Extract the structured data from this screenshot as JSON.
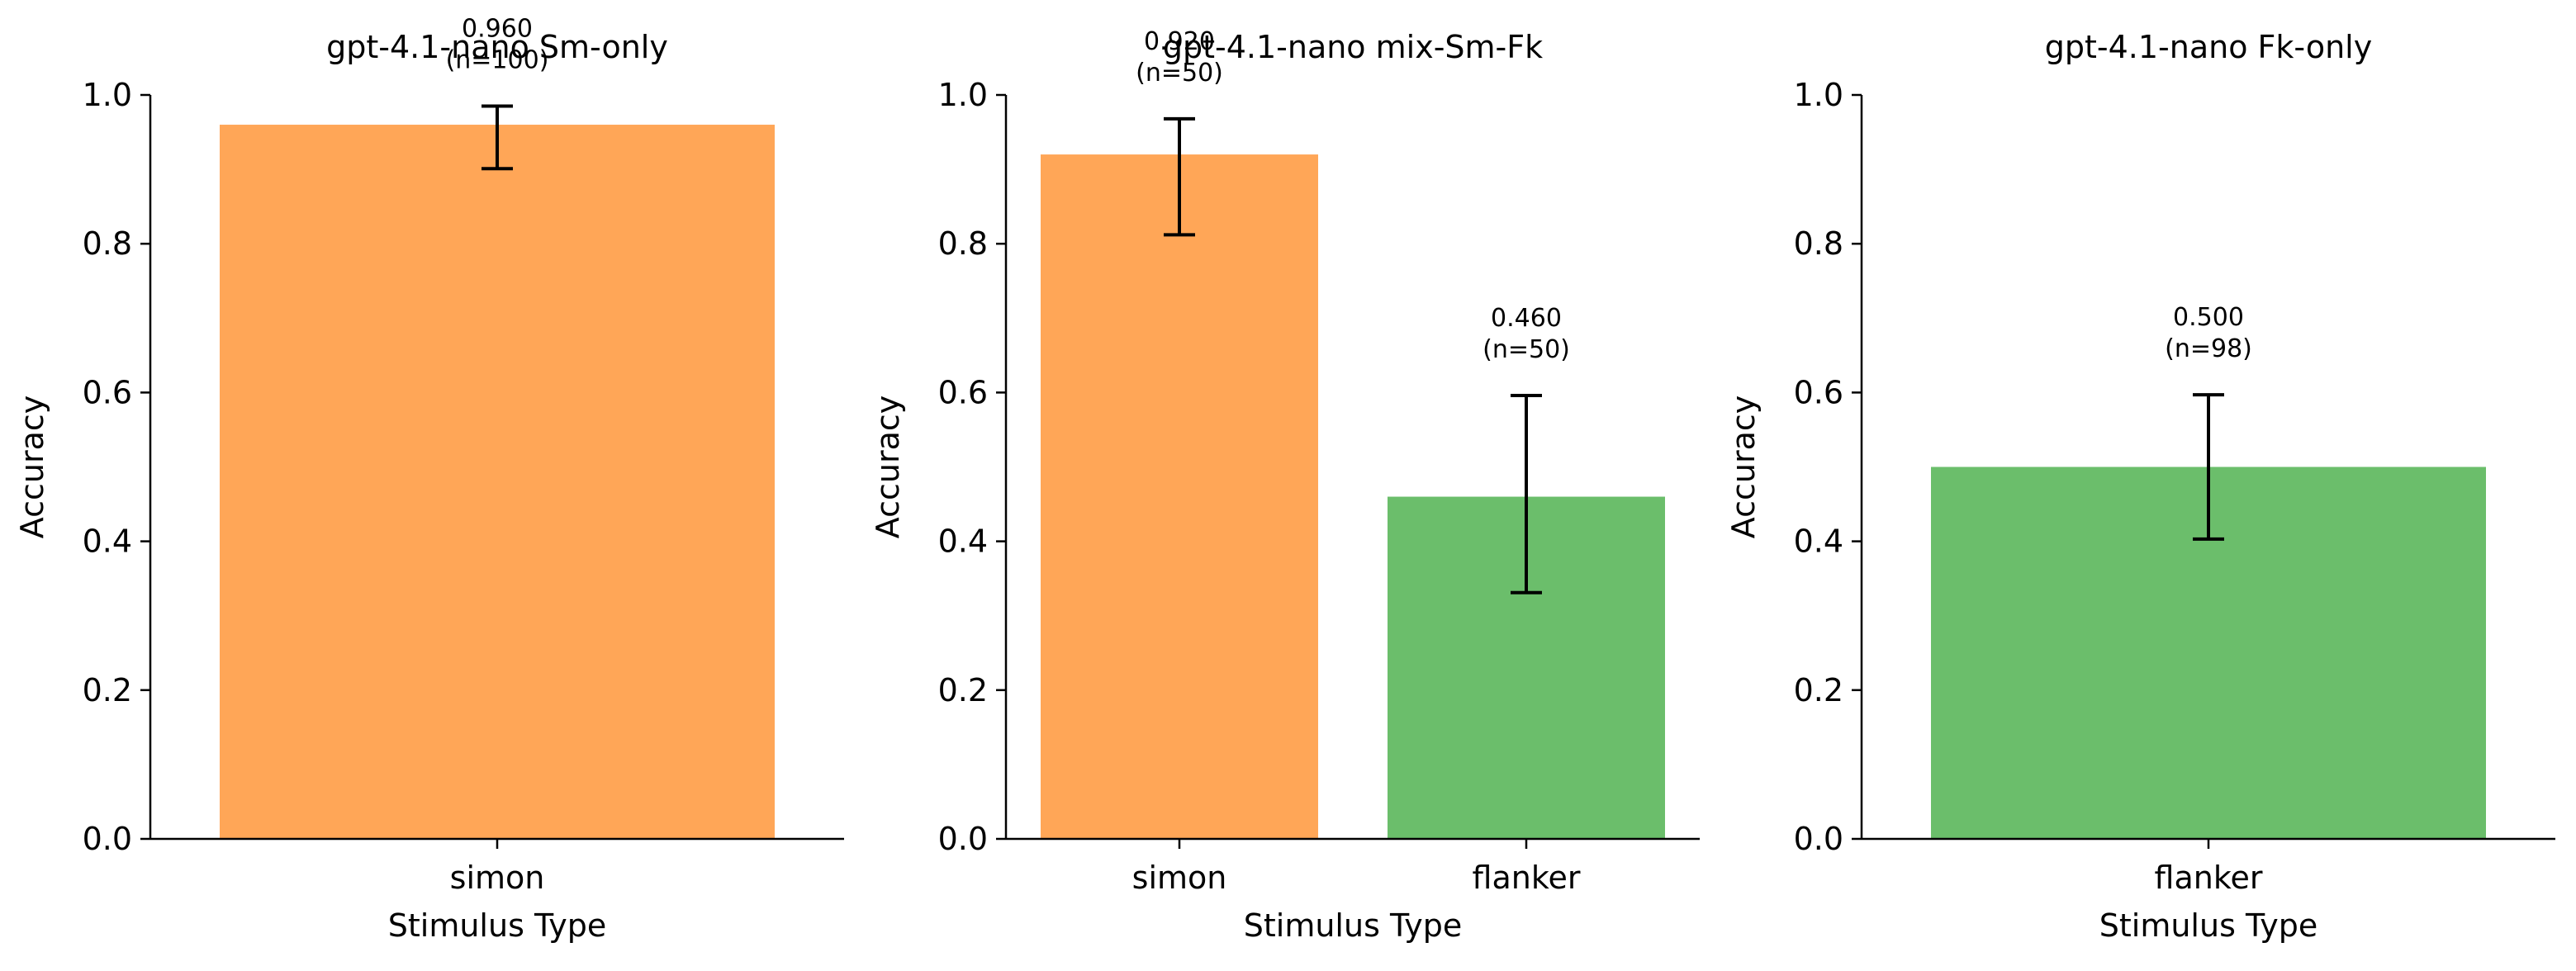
{
  "colors": {
    "simon": "#FFA657",
    "flanker": "#6BBE6B",
    "axis": "#000000"
  },
  "chart_data": [
    {
      "type": "bar",
      "title": "gpt-4.1-nano Sm-only",
      "xlabel": "Stimulus Type",
      "ylabel": "Accuracy",
      "ylim": [
        0,
        1.0
      ],
      "yticks": [
        "0.0",
        "0.2",
        "0.4",
        "0.6",
        "0.8",
        "1.0"
      ],
      "grid": false,
      "categories": [
        "simon"
      ],
      "values": [
        0.96
      ],
      "error_low": [
        0.901
      ],
      "error_high": [
        0.985
      ],
      "value_labels": [
        "0.960"
      ],
      "n_labels": [
        "(n=100)"
      ],
      "bar_colors": [
        "simon"
      ]
    },
    {
      "type": "bar",
      "title": "gpt-4.1-nano mix-Sm-Fk",
      "xlabel": "Stimulus Type",
      "ylabel": "Accuracy",
      "ylim": [
        0,
        1.0
      ],
      "yticks": [
        "0.0",
        "0.2",
        "0.4",
        "0.6",
        "0.8",
        "1.0"
      ],
      "grid": false,
      "categories": [
        "simon",
        "flanker"
      ],
      "values": [
        0.92,
        0.46
      ],
      "error_low": [
        0.812,
        0.331
      ],
      "error_high": [
        0.968,
        0.596
      ],
      "value_labels": [
        "0.920",
        "0.460"
      ],
      "n_labels": [
        "(n=50)",
        "(n=50)"
      ],
      "bar_colors": [
        "simon",
        "flanker"
      ]
    },
    {
      "type": "bar",
      "title": "gpt-4.1-nano Fk-only",
      "xlabel": "Stimulus Type",
      "ylabel": "Accuracy",
      "ylim": [
        0,
        1.0
      ],
      "yticks": [
        "0.0",
        "0.2",
        "0.4",
        "0.6",
        "0.8",
        "1.0"
      ],
      "grid": false,
      "categories": [
        "flanker"
      ],
      "values": [
        0.5
      ],
      "error_low": [
        0.403
      ],
      "error_high": [
        0.597
      ],
      "value_labels": [
        "0.500"
      ],
      "n_labels": [
        "(n=98)"
      ],
      "bar_colors": [
        "flanker"
      ]
    }
  ]
}
